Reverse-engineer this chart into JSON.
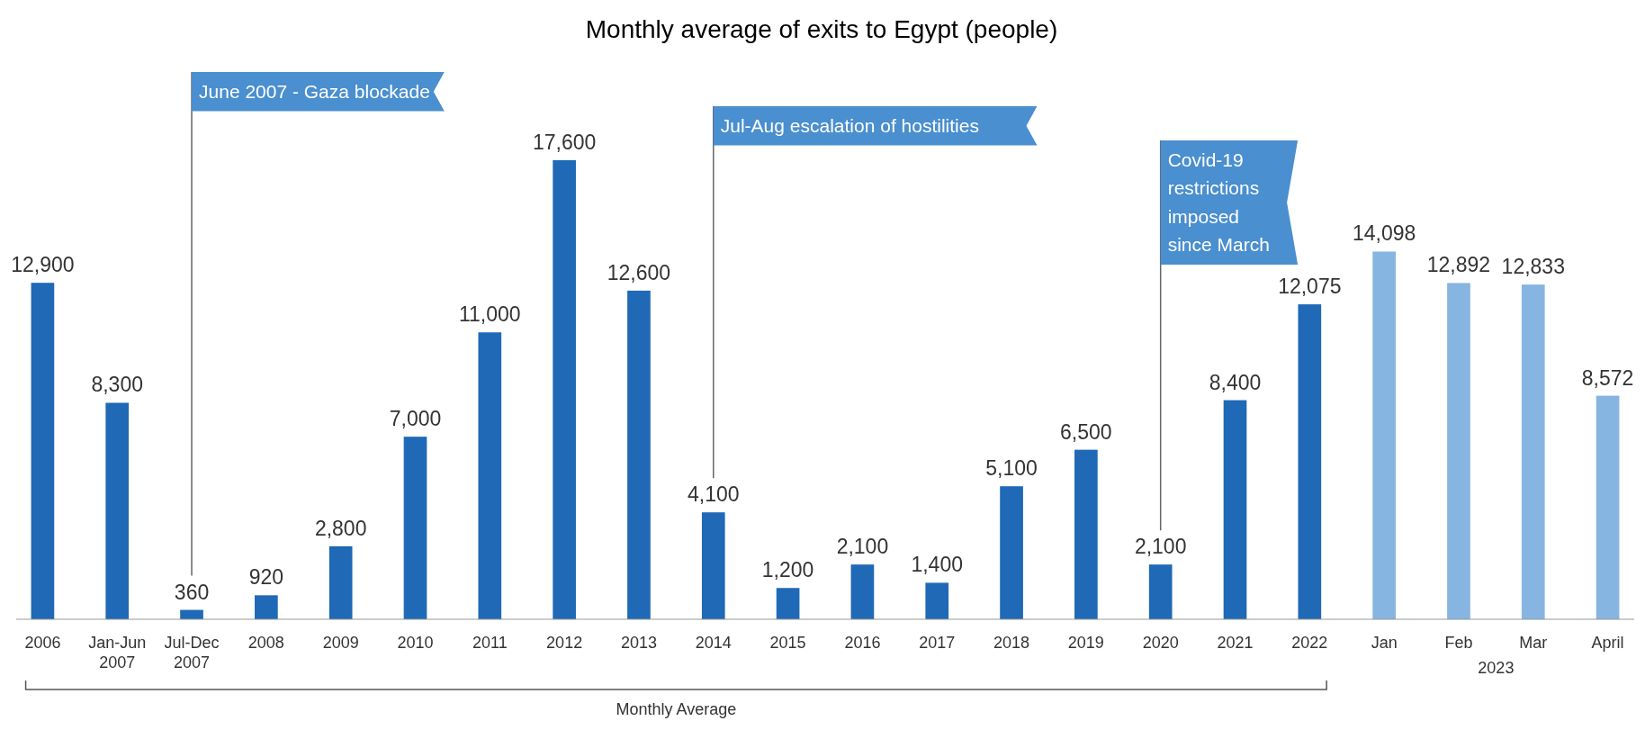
{
  "chart_data": {
    "type": "bar",
    "title": "Monthly average of exits to Egypt (people)",
    "categories": [
      "2006",
      "Jan-Jun 2007",
      "Jul-Dec 2007",
      "2008",
      "2009",
      "2010",
      "2011",
      "2012",
      "2013",
      "2014",
      "2015",
      "2016",
      "2017",
      "2018",
      "2019",
      "2020",
      "2021",
      "2022",
      "Jan",
      "Feb",
      "Mar",
      "April"
    ],
    "values": [
      12900,
      8300,
      360,
      920,
      2800,
      7000,
      11000,
      17600,
      12600,
      4100,
      1200,
      2100,
      1400,
      5100,
      6500,
      2100,
      8400,
      12075,
      14098,
      12892,
      12833,
      8572
    ],
    "value_labels": [
      "12,900",
      "8,300",
      "360",
      "920",
      "2,800",
      "7,000",
      "11,000",
      "17,600",
      "12,600",
      "4,100",
      "1,200",
      "2,100",
      "1,400",
      "5,100",
      "6,500",
      "2,100",
      "8,400",
      "12,075",
      "14,098",
      "12,892",
      "12,833",
      "8,572"
    ],
    "colors": [
      "#1f69b6",
      "#1f69b6",
      "#1f69b6",
      "#1f69b6",
      "#1f69b6",
      "#1f69b6",
      "#1f69b6",
      "#1f69b6",
      "#1f69b6",
      "#1f69b6",
      "#1f69b6",
      "#1f69b6",
      "#1f69b6",
      "#1f69b6",
      "#1f69b6",
      "#1f69b6",
      "#1f69b6",
      "#1f69b6",
      "#86b5e1",
      "#86b5e1",
      "#86b5e1",
      "#86b5e1"
    ],
    "ref_lines": [
      {
        "axis": "x",
        "value": "Jul-Dec 2007",
        "label": "June 2007 - Gaza blockade"
      },
      {
        "axis": "x",
        "value": "2014",
        "label": "Jul-Aug escalation of hostilities"
      },
      {
        "axis": "x",
        "value": "2020",
        "label": "Covid-19 restrictions imposed since March"
      }
    ],
    "annotations": [
      "Monthly Average",
      "2023"
    ]
  }
}
